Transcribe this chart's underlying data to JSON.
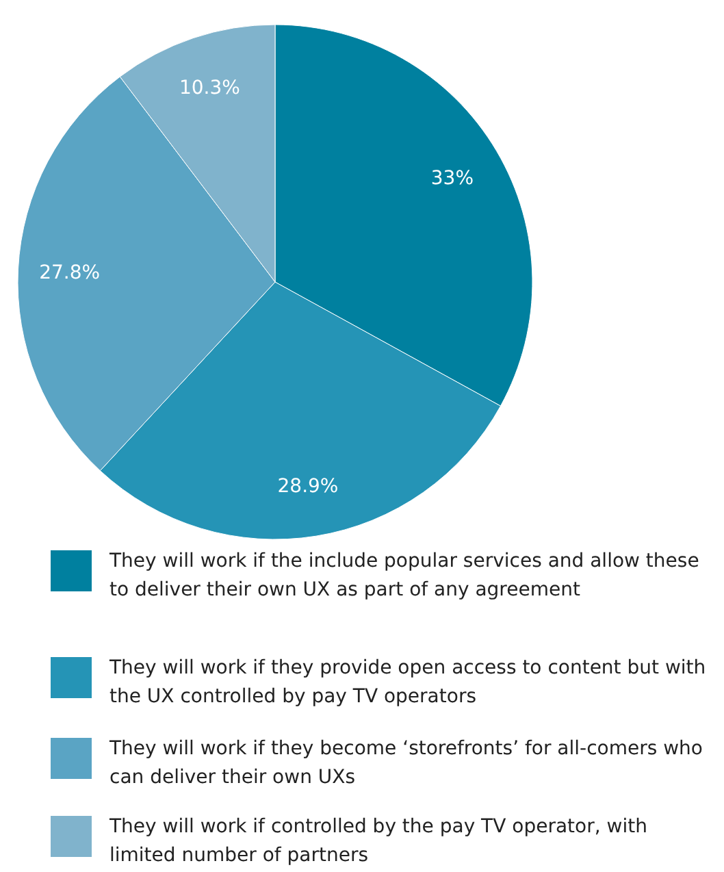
{
  "chart_data": {
    "type": "pie",
    "categories": [
      "They will work if the include popular services and allow these to deliver their own UX as part of any agreement",
      "They will work if they provide open access to content but with the UX controlled by pay TV operators",
      "They will work if they become ‘storefronts’ for all-comers who can deliver their own UXs",
      "They will work if controlled by the pay TV operator, with limited number of partners"
    ],
    "values": [
      33,
      28.9,
      27.8,
      10.3
    ],
    "value_labels": [
      "33%",
      "28.9%",
      "27.8%",
      "10.3%"
    ],
    "colors": [
      "#00809f",
      "#2594b6",
      "#5aa4c4",
      "#80b3cc"
    ],
    "legend": "bottom"
  }
}
